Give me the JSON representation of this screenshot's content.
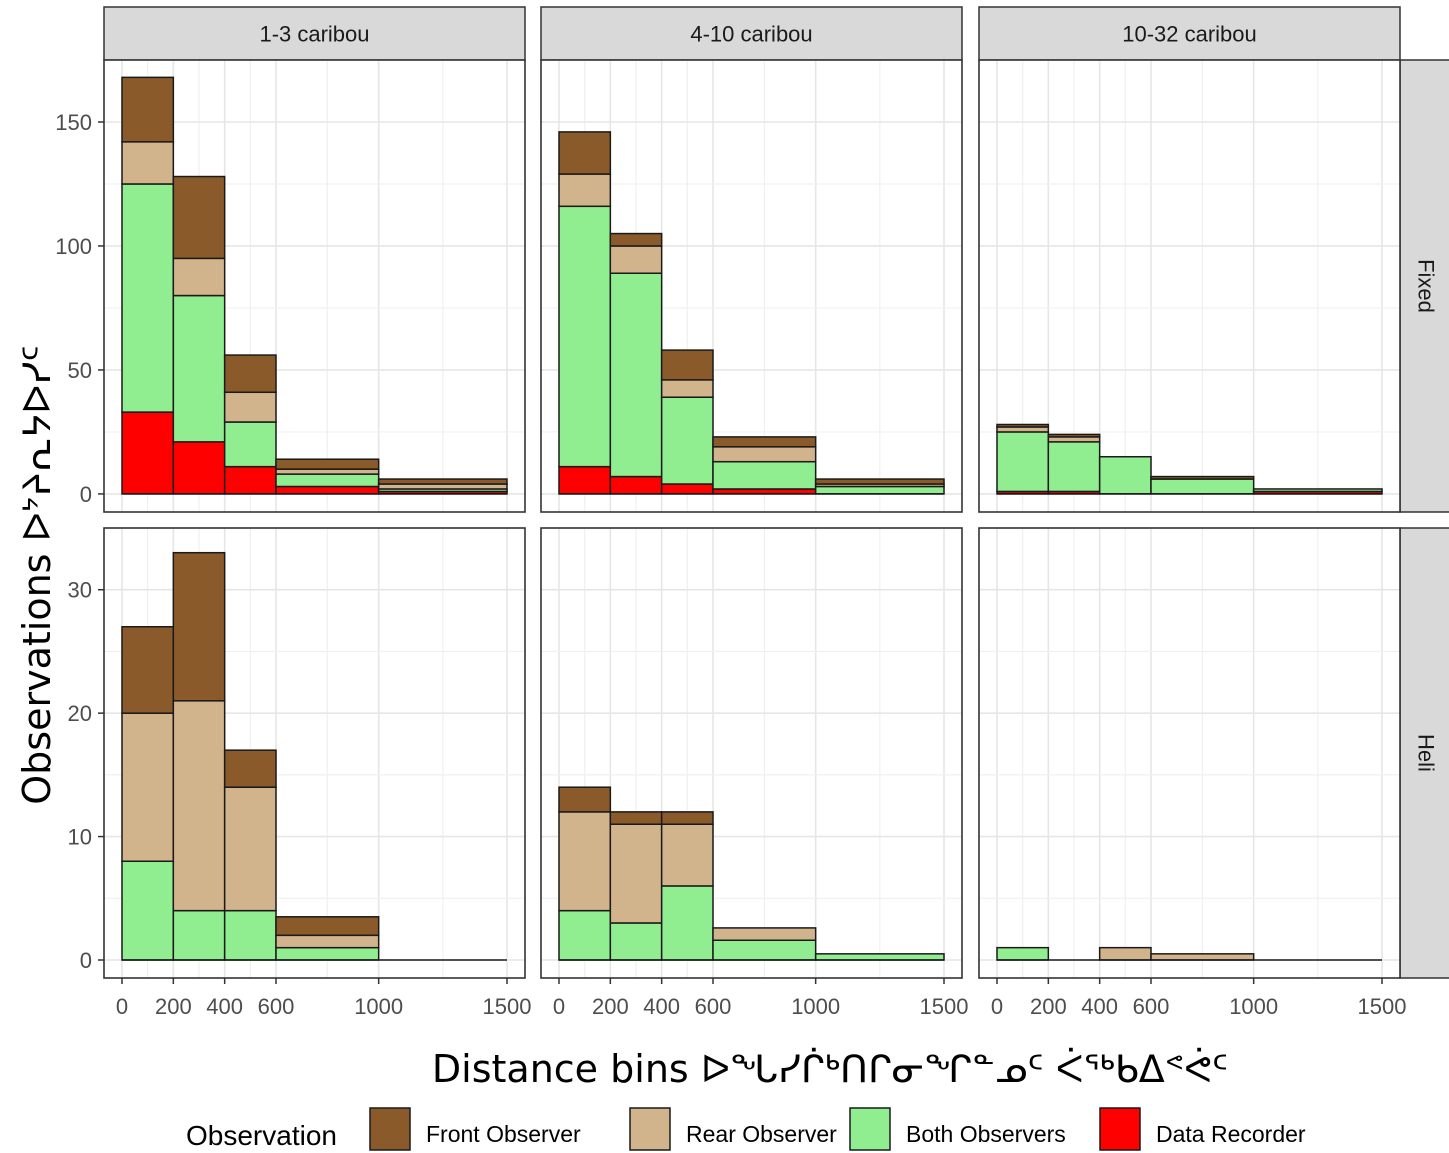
{
  "chart_data": {
    "type": "bar",
    "stacked": true,
    "facet_columns": [
      "1-3 caribou",
      "4-10 caribou",
      "10-32 caribou"
    ],
    "facet_rows": [
      "Fixed",
      "Heli"
    ],
    "xlabel": "Distance bins   ᐅᖓᓯᒌᒃᑎᒋᓂᖏᓐᓄᑦ ᐹᖅᑲᐃᕝᕚᑦ",
    "ylabel": "Observations   ᐅᔾᔨᕆᔭᐅᓯᑦ",
    "x_ticks": [
      0,
      200,
      400,
      600,
      1000,
      1500
    ],
    "xlim": [
      0,
      1500
    ],
    "grid": true,
    "legend_placement": "bottom",
    "legend_title": "Observation",
    "bins": [
      [
        0,
        200
      ],
      [
        200,
        400
      ],
      [
        400,
        600
      ],
      [
        600,
        1000
      ],
      [
        1000,
        1500
      ]
    ],
    "series": [
      {
        "name": "Data Recorder",
        "color": "#ff0000"
      },
      {
        "name": "Both Observers",
        "color": "#90ee90"
      },
      {
        "name": "Rear Observer",
        "color": "#d2b48c"
      },
      {
        "name": "Front Observer",
        "color": "#8b5a2b"
      }
    ],
    "legend_order": [
      "Front Observer",
      "Rear Observer",
      "Both Observers",
      "Data Recorder"
    ],
    "panels": [
      {
        "row": "Fixed",
        "col": "1-3 caribou",
        "ylim": [
          0,
          175
        ],
        "y_ticks": [
          0,
          50,
          100,
          150
        ],
        "values": {
          "Data Recorder": [
            33,
            21,
            11,
            3,
            1
          ],
          "Both Observers": [
            92,
            59,
            18,
            5,
            1
          ],
          "Rear Observer": [
            17,
            15,
            12,
            2,
            2
          ],
          "Front Observer": [
            26,
            33,
            15,
            4,
            2
          ]
        }
      },
      {
        "row": "Fixed",
        "col": "4-10 caribou",
        "ylim": [
          0,
          175
        ],
        "y_ticks": [
          0,
          50,
          100,
          150
        ],
        "values": {
          "Data Recorder": [
            11,
            7,
            4,
            2,
            0
          ],
          "Both Observers": [
            105,
            82,
            35,
            11,
            3
          ],
          "Rear Observer": [
            13,
            11,
            7,
            6,
            1
          ],
          "Front Observer": [
            17,
            5,
            12,
            4,
            2
          ]
        }
      },
      {
        "row": "Fixed",
        "col": "10-32 caribou",
        "ylim": [
          0,
          175
        ],
        "y_ticks": [
          0,
          50,
          100,
          150
        ],
        "values": {
          "Data Recorder": [
            1,
            1,
            0,
            0,
            1
          ],
          "Both Observers": [
            24,
            20,
            15,
            6,
            1
          ],
          "Rear Observer": [
            2,
            2,
            0,
            0,
            0
          ],
          "Front Observer": [
            1,
            1,
            0,
            1,
            0
          ]
        }
      },
      {
        "row": "Heli",
        "col": "1-3 caribou",
        "ylim": [
          0,
          35
        ],
        "y_ticks": [
          0,
          10,
          20,
          30
        ],
        "values": {
          "Data Recorder": [
            0,
            0,
            0,
            0,
            0
          ],
          "Both Observers": [
            8,
            4,
            4,
            1,
            0
          ],
          "Rear Observer": [
            12,
            17,
            10,
            1,
            0
          ],
          "Front Observer": [
            7,
            12,
            3,
            1.5,
            0
          ]
        }
      },
      {
        "row": "Heli",
        "col": "4-10 caribou",
        "ylim": [
          0,
          35
        ],
        "y_ticks": [
          0,
          10,
          20,
          30
        ],
        "values": {
          "Data Recorder": [
            0,
            0,
            0,
            0,
            0
          ],
          "Both Observers": [
            4,
            3,
            6,
            1.6,
            0.5
          ],
          "Rear Observer": [
            8,
            8,
            5,
            1,
            0
          ],
          "Front Observer": [
            2,
            1,
            1,
            0,
            0
          ]
        }
      },
      {
        "row": "Heli",
        "col": "10-32 caribou",
        "ylim": [
          0,
          35
        ],
        "y_ticks": [
          0,
          10,
          20,
          30
        ],
        "values": {
          "Data Recorder": [
            0,
            0,
            0,
            0,
            0
          ],
          "Both Observers": [
            1,
            0,
            0,
            0,
            0
          ],
          "Rear Observer": [
            0,
            0,
            1,
            0.5,
            0
          ],
          "Front Observer": [
            0,
            0,
            0,
            0,
            0
          ]
        }
      }
    ]
  }
}
